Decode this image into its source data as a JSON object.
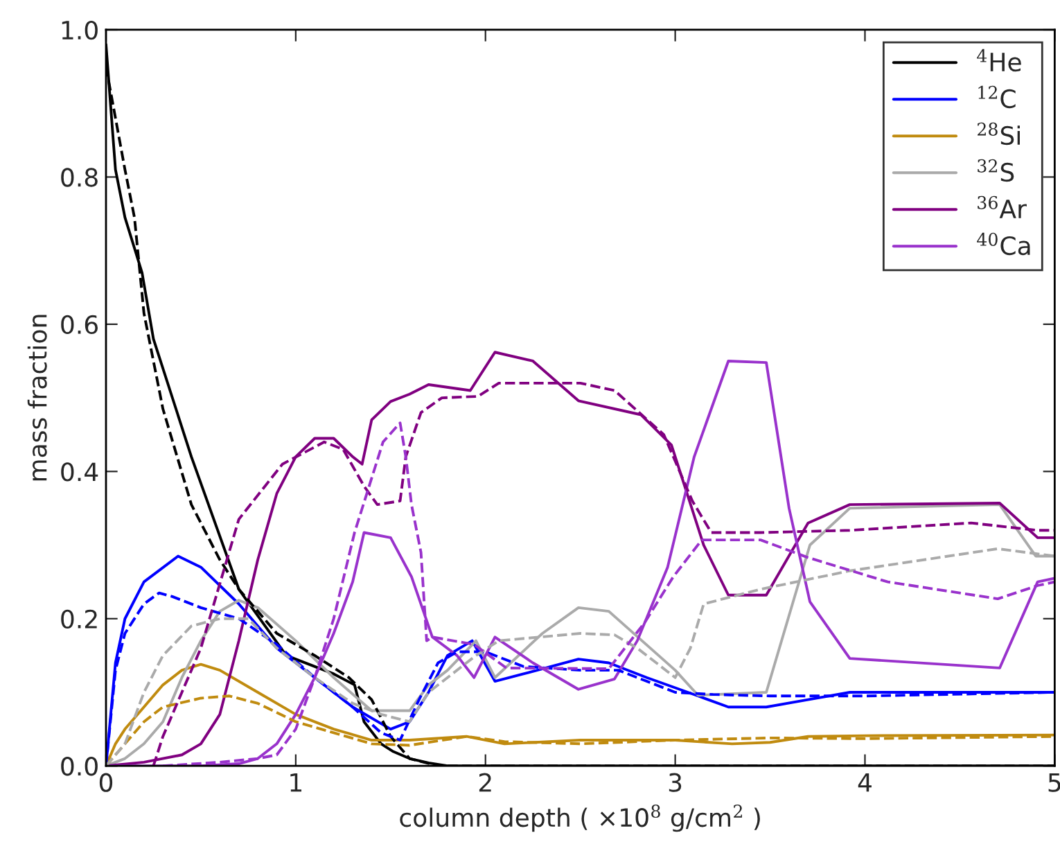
{
  "chart_data": {
    "type": "line",
    "xlabel": "column depth ( ×10$^{8}$ g/cm$^{2}$ )",
    "ylabel": "mass fraction",
    "xlim": [
      0,
      5
    ],
    "ylim": [
      0,
      1.0
    ],
    "xticks": [
      0,
      1,
      2,
      3,
      4,
      5
    ],
    "yticks": [
      {
        "value": 0,
        "label": "0.0"
      },
      {
        "value": 0.2,
        "label": "0.2"
      },
      {
        "value": 0.4,
        "label": "0.4"
      },
      {
        "value": 0.6,
        "label": "0.6"
      },
      {
        "value": 0.8,
        "label": "0.8"
      },
      {
        "value": 1.0,
        "label": "1.0"
      }
    ],
    "grid": false,
    "legend": "top right",
    "marker": "none",
    "series": [
      {
        "name": "$^{4}$He",
        "color": "#000000",
        "line_style": "solid",
        "x": [
          0,
          0.05,
          0.1,
          0.19,
          0.25,
          0.45,
          0.7,
          0.95,
          1.2,
          1.31,
          1.36,
          1.45,
          1.51,
          1.6,
          1.7,
          1.8,
          5
        ],
        "values": [
          0.98,
          0.81,
          0.745,
          0.67,
          0.58,
          0.42,
          0.24,
          0.15,
          0.125,
          0.11,
          0.06,
          0.03,
          0.02,
          0.01,
          0.004,
          0,
          0
        ]
      },
      {
        "name": "$^{12}$C",
        "color": "#0000ff",
        "line_style": "solid",
        "x": [
          0,
          0.05,
          0.1,
          0.2,
          0.38,
          0.5,
          0.7,
          0.9,
          1.1,
          1.3,
          1.5,
          1.6,
          1.7,
          1.8,
          1.93,
          2.05,
          2.2,
          2.49,
          2.65,
          2.85,
          3.11,
          3.28,
          3.48,
          3.7,
          3.92,
          5
        ],
        "values": [
          0,
          0.14,
          0.2,
          0.25,
          0.285,
          0.27,
          0.22,
          0.16,
          0.12,
          0.08,
          0.05,
          0.06,
          0.1,
          0.15,
          0.17,
          0.115,
          0.125,
          0.145,
          0.14,
          0.12,
          0.096,
          0.08,
          0.08,
          0.09,
          0.1,
          0.1
        ]
      },
      {
        "name": "$^{28}$Si",
        "color": "#c08b0f",
        "line_style": "solid",
        "x": [
          0,
          0.05,
          0.1,
          0.2,
          0.3,
          0.4,
          0.5,
          0.6,
          0.8,
          1.0,
          1.2,
          1.4,
          1.6,
          1.9,
          2.1,
          2.5,
          3.0,
          3.3,
          3.5,
          3.7,
          4.0,
          5
        ],
        "values": [
          0,
          0.03,
          0.05,
          0.08,
          0.11,
          0.13,
          0.138,
          0.13,
          0.1,
          0.07,
          0.05,
          0.035,
          0.035,
          0.04,
          0.03,
          0.035,
          0.035,
          0.03,
          0.032,
          0.04,
          0.041,
          0.042
        ]
      },
      {
        "name": "$^{32}$S",
        "color": "#aaaaaa",
        "line_style": "solid",
        "x": [
          0,
          0.1,
          0.2,
          0.3,
          0.4,
          0.5,
          0.6,
          0.7,
          0.8,
          1.0,
          1.2,
          1.4,
          1.6,
          1.7,
          1.8,
          1.95,
          2.05,
          2.3,
          2.49,
          2.65,
          3.0,
          3.12,
          3.48,
          3.71,
          3.92,
          4.71,
          4.9,
          5
        ],
        "values": [
          0,
          0.01,
          0.03,
          0.06,
          0.12,
          0.17,
          0.21,
          0.225,
          0.215,
          0.17,
          0.12,
          0.075,
          0.075,
          0.11,
          0.13,
          0.17,
          0.12,
          0.18,
          0.215,
          0.21,
          0.13,
          0.096,
          0.1,
          0.3,
          0.35,
          0.355,
          0.285,
          0.285
        ]
      },
      {
        "name": "$^{36}$Ar",
        "color": "#800080",
        "line_style": "solid",
        "x": [
          0,
          0.2,
          0.4,
          0.5,
          0.6,
          0.7,
          0.8,
          0.9,
          1.0,
          1.1,
          1.2,
          1.3,
          1.35,
          1.4,
          1.5,
          1.6,
          1.7,
          1.92,
          2.05,
          2.25,
          2.49,
          2.82,
          2.98,
          3.15,
          3.28,
          3.48,
          3.7,
          3.92,
          4.71,
          4.91,
          5
        ],
        "values": [
          0,
          0.005,
          0.015,
          0.03,
          0.07,
          0.17,
          0.28,
          0.37,
          0.42,
          0.445,
          0.445,
          0.42,
          0.41,
          0.47,
          0.495,
          0.505,
          0.518,
          0.51,
          0.562,
          0.55,
          0.496,
          0.477,
          0.436,
          0.3,
          0.232,
          0.232,
          0.33,
          0.355,
          0.357,
          0.31,
          0.31
        ]
      },
      {
        "name": "$^{40}$Ca",
        "color": "#9932cc",
        "line_style": "solid",
        "x": [
          0,
          0.5,
          0.7,
          0.8,
          0.9,
          1.0,
          1.1,
          1.2,
          1.3,
          1.36,
          1.5,
          1.61,
          1.72,
          1.85,
          1.94,
          2.05,
          2.25,
          2.49,
          2.68,
          2.8,
          2.96,
          3.1,
          3.28,
          3.48,
          3.6,
          3.71,
          3.92,
          4.71,
          4.91,
          5
        ],
        "values": [
          0,
          0,
          0.003,
          0.01,
          0.03,
          0.07,
          0.12,
          0.18,
          0.25,
          0.317,
          0.31,
          0.257,
          0.175,
          0.15,
          0.12,
          0.175,
          0.14,
          0.104,
          0.118,
          0.17,
          0.27,
          0.42,
          0.55,
          0.548,
          0.35,
          0.223,
          0.146,
          0.133,
          0.25,
          0.255
        ]
      },
      {
        "color": "#000000",
        "line_style": "dashed",
        "x": [
          0,
          0.05,
          0.1,
          0.15,
          0.2,
          0.3,
          0.45,
          0.6,
          0.7,
          0.9,
          1.1,
          1.28,
          1.4,
          1.5,
          1.6,
          1.75,
          5
        ],
        "values": [
          0.95,
          0.88,
          0.81,
          0.745,
          0.615,
          0.485,
          0.355,
          0.28,
          0.24,
          0.18,
          0.15,
          0.12,
          0.09,
          0.04,
          0.01,
          0,
          0
        ]
      },
      {
        "color": "#0000ff",
        "line_style": "dashed",
        "x": [
          0,
          0.05,
          0.1,
          0.2,
          0.28,
          0.35,
          0.5,
          0.7,
          0.9,
          1.1,
          1.3,
          1.45,
          1.55,
          1.65,
          1.75,
          1.85,
          2.0,
          2.2,
          2.5,
          2.7,
          3.0,
          3.2,
          3.5,
          4.0,
          5
        ],
        "values": [
          0,
          0.13,
          0.18,
          0.22,
          0.235,
          0.23,
          0.215,
          0.2,
          0.165,
          0.12,
          0.08,
          0.045,
          0.035,
          0.09,
          0.14,
          0.155,
          0.155,
          0.135,
          0.13,
          0.13,
          0.1,
          0.097,
          0.095,
          0.095,
          0.1
        ]
      },
      {
        "color": "#c08b0f",
        "line_style": "dashed",
        "x": [
          0,
          0.1,
          0.2,
          0.3,
          0.5,
          0.65,
          0.8,
          1.0,
          1.2,
          1.4,
          1.6,
          1.9,
          2.1,
          2.5,
          3.0,
          3.5,
          4.0,
          5
        ],
        "values": [
          0,
          0.03,
          0.06,
          0.08,
          0.092,
          0.095,
          0.085,
          0.06,
          0.045,
          0.03,
          0.028,
          0.04,
          0.033,
          0.03,
          0.035,
          0.038,
          0.037,
          0.04
        ]
      },
      {
        "color": "#aaaaaa",
        "line_style": "dashed",
        "x": [
          0,
          0.1,
          0.2,
          0.3,
          0.45,
          0.6,
          0.75,
          0.9,
          1.1,
          1.3,
          1.45,
          1.6,
          1.7,
          1.8,
          1.95,
          2.07,
          2.5,
          2.68,
          2.8,
          3.0,
          3.08,
          3.15,
          3.45,
          3.92,
          4.7,
          5
        ],
        "values": [
          0,
          0.03,
          0.1,
          0.15,
          0.19,
          0.2,
          0.2,
          0.16,
          0.12,
          0.085,
          0.07,
          0.06,
          0.1,
          0.12,
          0.15,
          0.17,
          0.18,
          0.178,
          0.16,
          0.12,
          0.16,
          0.22,
          0.24,
          0.265,
          0.295,
          0.285
        ]
      },
      {
        "color": "#800080",
        "line_style": "dashed",
        "x": [
          0.25,
          0.3,
          0.4,
          0.5,
          0.7,
          0.93,
          1.15,
          1.25,
          1.36,
          1.43,
          1.55,
          1.58,
          1.66,
          1.77,
          1.96,
          2.07,
          2.5,
          2.68,
          2.94,
          3.09,
          3.19,
          3.45,
          3.92,
          4.56,
          4.91,
          5
        ],
        "values": [
          0,
          0.04,
          0.1,
          0.16,
          0.335,
          0.41,
          0.44,
          0.43,
          0.38,
          0.355,
          0.36,
          0.42,
          0.48,
          0.5,
          0.502,
          0.52,
          0.52,
          0.51,
          0.45,
          0.36,
          0.317,
          0.317,
          0.32,
          0.33,
          0.32,
          0.32
        ]
      },
      {
        "color": "#9932cc",
        "line_style": "dashed",
        "x": [
          0.3,
          0.6,
          0.8,
          0.9,
          1.0,
          1.1,
          1.2,
          1.31,
          1.46,
          1.55,
          1.58,
          1.61,
          1.66,
          1.69,
          1.72,
          1.94,
          2.11,
          2.65,
          2.84,
          2.99,
          3.14,
          3.45,
          3.7,
          4.12,
          4.7,
          4.91,
          5
        ],
        "values": [
          0,
          0.005,
          0.01,
          0.015,
          0.05,
          0.12,
          0.2,
          0.317,
          0.44,
          0.466,
          0.42,
          0.355,
          0.29,
          0.17,
          0.175,
          0.165,
          0.133,
          0.132,
          0.195,
          0.257,
          0.307,
          0.307,
          0.283,
          0.25,
          0.227,
          0.245,
          0.25
        ]
      }
    ]
  }
}
